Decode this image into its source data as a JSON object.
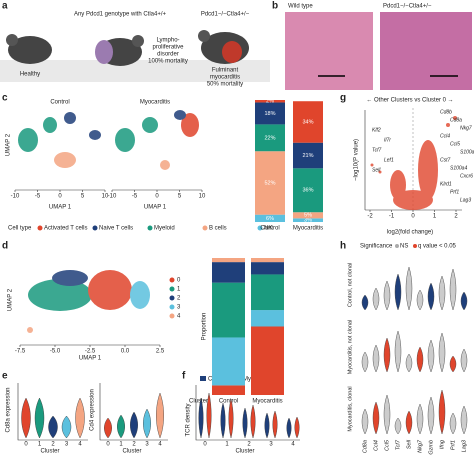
{
  "panels": [
    "a",
    "b",
    "c",
    "d",
    "e",
    "f",
    "g",
    "h"
  ],
  "a": {
    "healthy": "Healthy",
    "mid_title": "Any Pdcd1 genotype with Ctla4+/+",
    "mid_lines": [
      "Lympho-",
      "proliferative",
      "disorder",
      "100% mortality"
    ],
    "right_title": "Pdcd1−/−Ctla4+/−",
    "right_lines": [
      "Fulminant",
      "myocarditis",
      "50% mortality"
    ]
  },
  "b": {
    "left": "Wild type",
    "right": "Pdcd1−/−Ctla4+/−"
  },
  "c": {
    "titles": [
      "Control",
      "Myocarditis"
    ],
    "xlabel": "UMAP 1",
    "ylabel": "UMAP 2",
    "xticks": [
      -10,
      -5,
      0,
      5,
      10
    ],
    "legend_title": "Cell type",
    "legend": [
      "Activated T cells",
      "Naive T cells",
      "Myeloid",
      "B cells",
      "NK"
    ]
  },
  "d": {
    "xlabel": "UMAP 1",
    "ylabel": "UMAP 2",
    "xticks": [
      {
        "value": -7.5,
        "label": "-7.5"
      },
      {
        "value": -5,
        "label": "-5.0"
      },
      {
        "value": -2.5,
        "label": "-2.5"
      },
      {
        "value": 0,
        "label": "0.0"
      },
      {
        "value": 2.5,
        "label": "2.5"
      }
    ],
    "legend": [
      "0",
      "1",
      "2",
      "3",
      "4"
    ]
  },
  "e": {
    "ylabels": [
      "Cd8a expression",
      "Cd4 expression"
    ],
    "xlabel": "Cluster",
    "xticks": [
      0,
      1,
      2,
      3,
      4
    ]
  },
  "f": {
    "legend": [
      "Control",
      "Myocarditis"
    ],
    "ylabel": "TCR density",
    "xlabel": "Cluster",
    "xticks": [
      0,
      1,
      2,
      3,
      4
    ]
  },
  "g": {
    "title": "← Other Clusters vs Cluster 0 →",
    "xlabel": "log2(fold change)",
    "ylabel": "−log10(P value)",
    "xticks": [
      -2,
      -1,
      0,
      1,
      2
    ],
    "genes": [
      "Cd8b",
      "Cd8a",
      "Nkg7",
      "Ccl4",
      "Ccl5",
      "S100a6",
      "Cst7",
      "S100a4",
      "Cxcr6",
      "Klrd1",
      "Prf1",
      "Lag3",
      "Klf2",
      "Il7r",
      "Tcf7",
      "Lef1",
      "Sell"
    ]
  },
  "h": {
    "legend_title": "Significance",
    "legend": [
      "NS",
      "q value < 0.05"
    ],
    "rows": [
      "Control, not clonal",
      "Myocarditis, not clonal",
      "Myocarditis, clonal"
    ],
    "genes": [
      "Cd8a",
      "Ccl4",
      "Ccl5",
      "Tcf7",
      "Sell",
      "Nkg7",
      "Gzmb",
      "Ifng",
      "Prf1",
      "Lag3"
    ]
  },
  "chart_data": [
    {
      "type": "bar",
      "stacked": true,
      "categories": [
        "Control",
        "Myocarditis"
      ],
      "ylim": [
        0,
        100
      ],
      "series": [
        {
          "name": "NK",
          "color": "#5bc0de",
          "values": [
            6,
            3
          ],
          "value_labels": [
            "6%",
            "3%"
          ]
        },
        {
          "name": "B cells",
          "color": "#f4a582",
          "values": [
            52,
            5
          ],
          "value_labels": [
            "52%",
            "5%"
          ]
        },
        {
          "name": "Myeloid",
          "color": "#1a9a7e",
          "values": [
            22,
            36
          ],
          "value_labels": [
            "22%",
            "36%"
          ]
        },
        {
          "name": "Naive T cells",
          "color": "#1f3f7a",
          "values": [
            18,
            21
          ],
          "value_labels": [
            "18%",
            "21%"
          ]
        },
        {
          "name": "Activated T cells",
          "color": "#e0452c",
          "values": [
            2,
            34
          ],
          "value_labels": [
            "2%",
            "34%"
          ]
        }
      ]
    },
    {
      "type": "bar",
      "stacked": true,
      "categories": [
        "Control",
        "Myocarditis"
      ],
      "xlabel": "Cluster",
      "ylabel": "Proportion",
      "ylim": [
        0,
        100
      ],
      "series": [
        {
          "name": "0",
          "color": "#e0452c",
          "values": [
            7,
            50
          ]
        },
        {
          "name": "3",
          "color": "#5bc0de",
          "values": [
            35,
            12
          ]
        },
        {
          "name": "1",
          "color": "#1a9a7e",
          "values": [
            40,
            26
          ]
        },
        {
          "name": "2",
          "color": "#1f3f7a",
          "values": [
            15,
            9
          ]
        },
        {
          "name": "4",
          "color": "#f4a582",
          "values": [
            3,
            3
          ]
        }
      ]
    }
  ]
}
